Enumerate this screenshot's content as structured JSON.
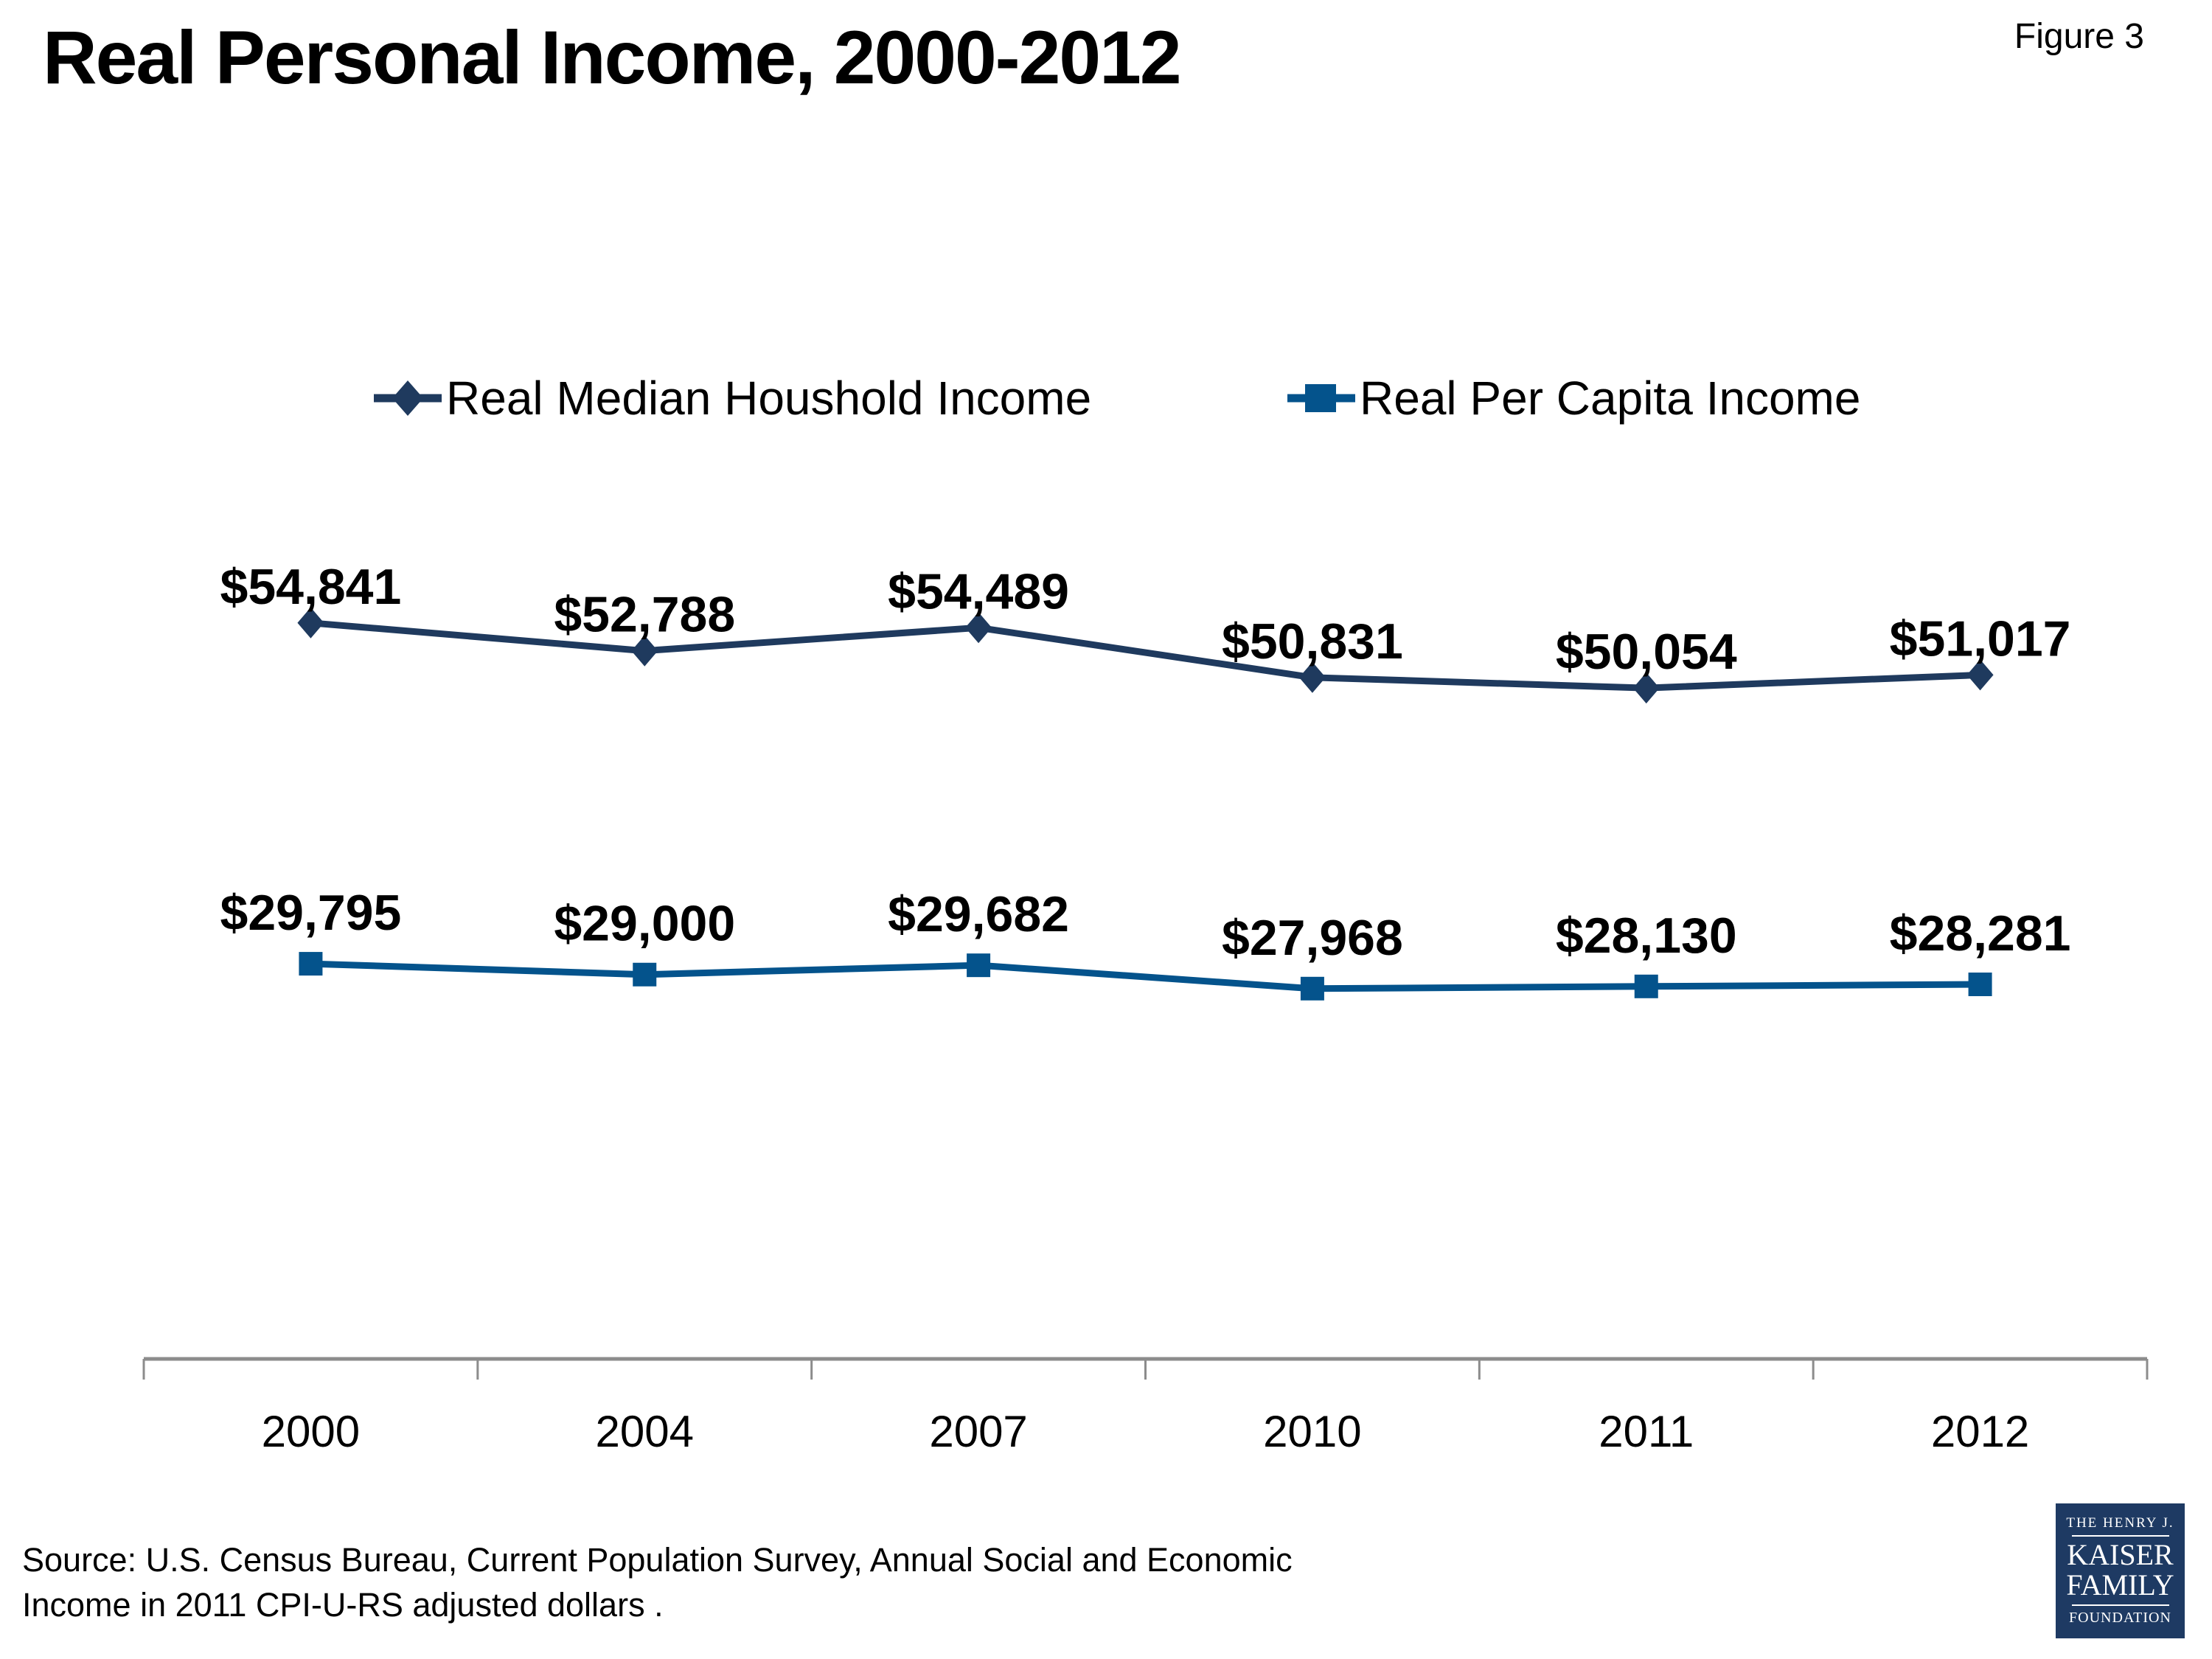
{
  "figure_label": "Figure 3",
  "title": "Real Personal Income, 2000-2012",
  "source": {
    "line1": "Source: U.S. Census Bureau, Current Population Survey, Annual Social and Economic",
    "line2": "Income in 2011 CPI-U-RS adjusted dollars ."
  },
  "logo": {
    "line1": "THE HENRY J.",
    "line2": "KAISER",
    "line3": "FAMILY",
    "line4": "FOUNDATION"
  },
  "colors": {
    "median_series": "#1F3A5E",
    "per_capita_series": "#04538C",
    "axis": "#8C8C8C",
    "logo_background": "#1E3A63",
    "text": "#000000"
  },
  "chart_data": {
    "type": "line",
    "categories": [
      "2000",
      "2004",
      "2007",
      "2010",
      "2011",
      "2012"
    ],
    "series": [
      {
        "name": "Real Median Houshold Income",
        "marker": "diamond",
        "color": "#1F3A5E",
        "values": [
          54841,
          52788,
          54489,
          50831,
          50054,
          51017
        ],
        "labels": [
          "$54,841",
          "$52,788",
          "$54,489",
          "$50,831",
          "$50,054",
          "$51,017"
        ]
      },
      {
        "name": "Real Per Capita Income",
        "marker": "square",
        "color": "#04538C",
        "values": [
          29795,
          29000,
          29682,
          27968,
          28130,
          28281
        ],
        "labels": [
          "$29,795",
          "$29,000",
          "$29,682",
          "$27,968",
          "$28,130",
          "$28,281"
        ]
      }
    ],
    "ylim": [
      0,
      60000
    ],
    "grid": false,
    "legend_position": "top",
    "data_labels": true
  }
}
